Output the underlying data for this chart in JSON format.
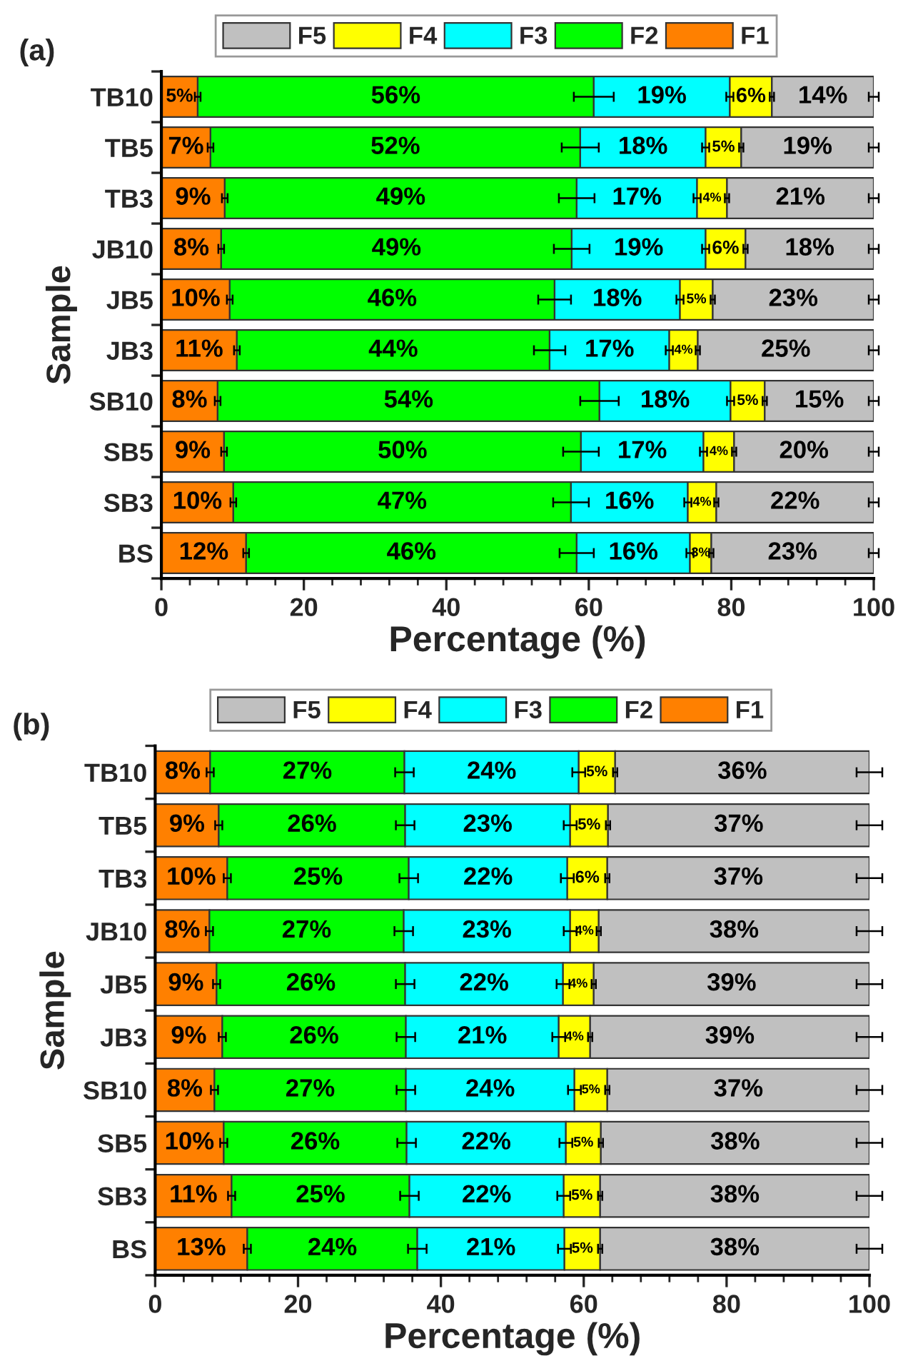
{
  "chart_data": [
    {
      "type": "bar",
      "title": "(a)",
      "xlabel": "Percentage (%)",
      "ylabel": "Sample",
      "orientation": "horizontal",
      "stacked": true,
      "legend": "top",
      "xlim": [
        0,
        100
      ],
      "xticks": [
        0,
        20,
        40,
        60,
        80,
        100
      ],
      "categories": [
        "TB10",
        "TB5",
        "TB3",
        "JB10",
        "JB5",
        "JB3",
        "SB10",
        "SB5",
        "SB3",
        "BS"
      ],
      "series": [
        {
          "name": "F1",
          "color": "#ff8000",
          "values": [
            5.1,
            6.9,
            8.9,
            8.4,
            9.6,
            10.6,
            7.9,
            8.8,
            10.1,
            11.9
          ],
          "errors": [
            0.4,
            0.4,
            0.4,
            0.4,
            0.4,
            0.4,
            0.4,
            0.4,
            0.4,
            0.4
          ],
          "value_labels": [
            "5%",
            "7%",
            "9%",
            "8%",
            "10%",
            "11%",
            "8%",
            "9%",
            "10%",
            "12%"
          ]
        },
        {
          "name": "F2",
          "color": "#00ff00",
          "values": [
            55.6,
            51.9,
            49.4,
            49.2,
            45.6,
            43.9,
            53.6,
            50.1,
            47.4,
            46.4
          ],
          "errors": [
            2.8,
            2.6,
            2.5,
            2.5,
            2.3,
            2.2,
            2.7,
            2.5,
            2.5,
            2.4
          ],
          "value_labels": [
            "56%",
            "52%",
            "49%",
            "49%",
            "46%",
            "44%",
            "54%",
            "50%",
            "47%",
            "46%"
          ]
        },
        {
          "name": "F3",
          "color": "#00ffff",
          "values": [
            19.1,
            17.6,
            16.9,
            18.8,
            17.6,
            16.8,
            18.4,
            17.2,
            16.4,
            15.9
          ],
          "errors": [
            0.5,
            0.5,
            0.5,
            0.5,
            0.5,
            0.5,
            0.5,
            0.5,
            0.5,
            0.5
          ],
          "value_labels": [
            "19%",
            "18%",
            "17%",
            "19%",
            "18%",
            "17%",
            "18%",
            "17%",
            "16%",
            "16%"
          ]
        },
        {
          "name": "F4",
          "color": "#ffff00",
          "values": [
            5.9,
            5.0,
            4.2,
            5.6,
            4.6,
            4.0,
            4.8,
            4.3,
            4.0,
            3.0
          ],
          "errors": [
            0.3,
            0.3,
            0.3,
            0.3,
            0.3,
            0.3,
            0.3,
            0.3,
            0.3,
            0.3
          ],
          "value_labels": [
            "6%",
            "5%",
            "4%",
            "6%",
            "5%",
            "4%",
            "5%",
            "4%",
            "4%",
            "3%"
          ]
        },
        {
          "name": "F5",
          "color": "#c0c0c0",
          "values": [
            14.3,
            18.6,
            20.6,
            18.0,
            22.6,
            24.7,
            15.3,
            19.6,
            22.1,
            22.8
          ],
          "errors": [
            0.7,
            0.7,
            0.7,
            0.7,
            0.7,
            0.7,
            0.7,
            0.7,
            0.7,
            0.7
          ],
          "value_labels": [
            "14%",
            "19%",
            "21%",
            "18%",
            "23%",
            "25%",
            "15%",
            "20%",
            "22%",
            "23%"
          ]
        }
      ]
    },
    {
      "type": "bar",
      "title": "(b)",
      "xlabel": "Percentage (%)",
      "ylabel": "Sample",
      "orientation": "horizontal",
      "stacked": true,
      "legend": "top",
      "xlim": [
        0,
        100
      ],
      "xticks": [
        0,
        20,
        40,
        60,
        80,
        100
      ],
      "categories": [
        "TB10",
        "TB5",
        "TB3",
        "JB10",
        "JB5",
        "JB3",
        "SB10",
        "SB5",
        "SB3",
        "BS"
      ],
      "series": [
        {
          "name": "F1",
          "color": "#ff8000",
          "values": [
            7.7,
            8.9,
            10.1,
            7.6,
            8.6,
            9.4,
            8.3,
            9.6,
            10.7,
            12.9
          ],
          "errors": [
            0.5,
            0.5,
            0.5,
            0.5,
            0.5,
            0.5,
            0.5,
            0.5,
            0.5,
            0.5
          ],
          "value_labels": [
            "8%",
            "9%",
            "10%",
            "8%",
            "9%",
            "9%",
            "8%",
            "10%",
            "11%",
            "13%"
          ]
        },
        {
          "name": "F2",
          "color": "#00ff00",
          "values": [
            27.2,
            26.1,
            25.4,
            27.2,
            26.4,
            25.7,
            26.8,
            25.6,
            24.9,
            23.8
          ],
          "errors": [
            1.3,
            1.3,
            1.3,
            1.3,
            1.3,
            1.3,
            1.3,
            1.3,
            1.3,
            1.3
          ],
          "value_labels": [
            "27%",
            "26%",
            "25%",
            "27%",
            "26%",
            "26%",
            "27%",
            "26%",
            "25%",
            "24%"
          ]
        },
        {
          "name": "F3",
          "color": "#00ffff",
          "values": [
            24.4,
            23.1,
            22.2,
            23.3,
            22.1,
            21.4,
            23.6,
            22.3,
            21.6,
            20.6
          ],
          "errors": [
            0.9,
            0.9,
            0.9,
            0.9,
            0.9,
            0.9,
            0.9,
            0.9,
            0.9,
            0.9
          ],
          "value_labels": [
            "24%",
            "23%",
            "22%",
            "23%",
            "22%",
            "21%",
            "24%",
            "22%",
            "22%",
            "21%"
          ]
        },
        {
          "name": "F4",
          "color": "#ffff00",
          "values": [
            5.1,
            5.3,
            5.6,
            4.0,
            4.3,
            4.4,
            4.6,
            4.9,
            5.1,
            5.0
          ],
          "errors": [
            0.3,
            0.3,
            0.3,
            0.3,
            0.3,
            0.3,
            0.3,
            0.3,
            0.3,
            0.3
          ],
          "value_labels": [
            "5%",
            "5%",
            "6%",
            "4%",
            "4%",
            "4%",
            "5%",
            "5%",
            "5%",
            "5%"
          ]
        },
        {
          "name": "F5",
          "color": "#c0c0c0",
          "values": [
            35.6,
            36.6,
            36.7,
            37.9,
            38.6,
            39.1,
            36.7,
            37.6,
            37.7,
            37.7
          ],
          "errors": [
            1.8,
            1.8,
            1.8,
            1.8,
            1.8,
            1.8,
            1.8,
            1.8,
            1.8,
            1.8
          ],
          "value_labels": [
            "36%",
            "37%",
            "37%",
            "38%",
            "39%",
            "39%",
            "37%",
            "38%",
            "38%",
            "38%"
          ]
        }
      ]
    }
  ]
}
